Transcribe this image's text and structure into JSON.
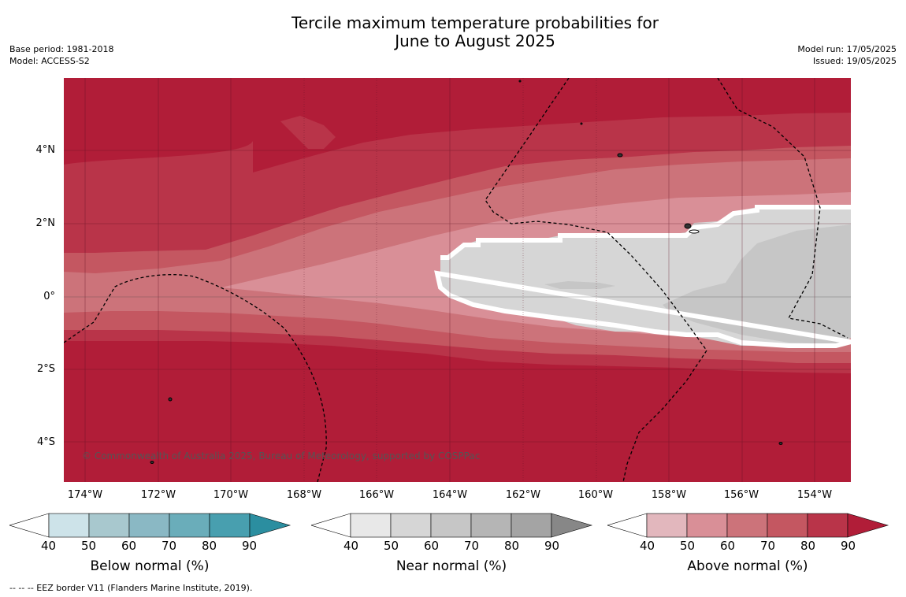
{
  "title_line1": "Tercile maximum temperature probabilities for",
  "title_line2": "June to August 2025",
  "meta_left": {
    "base_period": "Base period: 1981-2018",
    "model": "Model: ACCESS-S2"
  },
  "meta_right": {
    "model_run": "Model run: 17/05/2025",
    "issued": "Issued: 19/05/2025"
  },
  "map": {
    "lat_labels": [
      "4°N",
      "2°N",
      "0°",
      "2°S",
      "4°S"
    ],
    "lon_labels": [
      "174°W",
      "172°W",
      "170°W",
      "168°W",
      "166°W",
      "164°W",
      "162°W",
      "160°W",
      "158°W",
      "156°W",
      "154°W"
    ],
    "copyright": "© Commonwealth of Australia 2025, Bureau of Meteorology, supported by COSPPac",
    "colors": {
      "above_90": "#b11d38",
      "above_80": "#b93449",
      "above_70": "#c45761",
      "above_60": "#cc737a",
      "above_50": "#d98f97",
      "near_50": "#d6d6d6",
      "near_60": "#c6c6c6",
      "near_70": "#b5b5b5"
    }
  },
  "legends": [
    {
      "title": "Below normal (%)",
      "ticks": [
        "40",
        "50",
        "60",
        "70",
        "80",
        "90"
      ],
      "colors": [
        "#cde3e9",
        "#a8c8ce",
        "#8ab8c4",
        "#6aadba",
        "#489faf",
        "#2b8ea0"
      ]
    },
    {
      "title": "Near normal (%)",
      "ticks": [
        "40",
        "50",
        "60",
        "70",
        "80",
        "90"
      ],
      "colors": [
        "#e8e8e8",
        "#d6d6d6",
        "#c6c6c6",
        "#b5b5b5",
        "#a4a4a4",
        "#878787"
      ]
    },
    {
      "title": "Above normal (%)",
      "ticks": [
        "40",
        "50",
        "60",
        "70",
        "80",
        "90"
      ],
      "colors": [
        "#e2b7bd",
        "#d98f97",
        "#cc737a",
        "#c45761",
        "#b93449",
        "#b11d38"
      ]
    }
  ],
  "footer": "--  --  -- EEZ border V11 (Flanders Marine Institute, 2019)."
}
